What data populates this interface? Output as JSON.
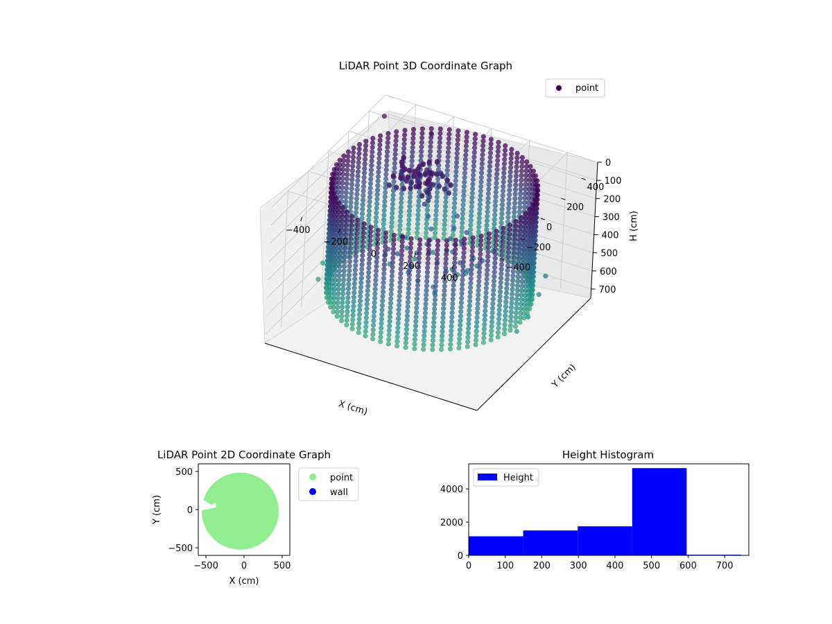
{
  "chart_data": [
    {
      "type": "scatter",
      "subtype": "3d",
      "title": "LiDAR Point 3D Coordinate Graph",
      "xlabel": "X (cm)",
      "ylabel": "Y (cm)",
      "zlabel": "H (cm)",
      "x_ticks": [
        -400,
        -200,
        0,
        200,
        400
      ],
      "y_ticks": [
        -400,
        -200,
        0,
        200,
        400
      ],
      "z_ticks": [
        0,
        100,
        200,
        300,
        400,
        500,
        600,
        700
      ],
      "x_tick_labels": [
        "−400",
        "−200",
        "0",
        "200",
        "400"
      ],
      "y_tick_labels": [
        "−400",
        "−200",
        "0",
        "200",
        "400"
      ],
      "z_tick_labels": [
        "0",
        "100",
        "200",
        "300",
        "400",
        "500",
        "600",
        "700"
      ],
      "z_inverted": true,
      "xlim": [
        -560,
        560
      ],
      "ylim": [
        -560,
        560
      ],
      "zlim": [
        0,
        750
      ],
      "colormap": "viridis",
      "legend": [
        "point"
      ],
      "legend_position": "top-right",
      "wall_shape": "ring",
      "wall_radius": 480,
      "wall_height_range": [
        0,
        600
      ],
      "inner_structure_center": [
        -150,
        150
      ],
      "outlier_points": [
        {
          "x": -520,
          "y": 480,
          "h": 60
        },
        {
          "x": -300,
          "y": 540,
          "h": 120
        },
        {
          "x": -560,
          "y": 200,
          "h": 420
        },
        {
          "x": -540,
          "y": 120,
          "h": 510
        },
        {
          "x": -520,
          "y": -80,
          "h": 560
        },
        {
          "x": -480,
          "y": -200,
          "h": 570
        },
        {
          "x": 520,
          "y": 160,
          "h": 420
        },
        {
          "x": 540,
          "y": 60,
          "h": 460
        },
        {
          "x": 560,
          "y": -80,
          "h": 500
        },
        {
          "x": 545,
          "y": -160,
          "h": 540
        }
      ]
    },
    {
      "type": "scatter",
      "title": "LiDAR Point 2D Coordinate Graph",
      "xlabel": "X (cm)",
      "ylabel": "Y (cm)",
      "x_ticks": [
        -500,
        0,
        500
      ],
      "y_ticks": [
        -500,
        0,
        500
      ],
      "x_tick_labels": [
        "−500",
        "0",
        "500"
      ],
      "y_tick_labels": [
        "−500",
        "0",
        "500"
      ],
      "xlim": [
        -600,
        600
      ],
      "ylim": [
        -600,
        600
      ],
      "legend": [
        {
          "label": "point",
          "color": "#90ee90"
        },
        {
          "label": "wall",
          "color": "#0000ff"
        }
      ],
      "legend_position": "outside-right",
      "point_region": {
        "center": [
          -50,
          -20
        ],
        "radius": 505
      }
    },
    {
      "type": "bar",
      "subtype": "histogram",
      "title": "Height Histogram",
      "legend": [
        "Height"
      ],
      "legend_position": "top-left",
      "color": "#0000ff",
      "bins": [
        {
          "start": 0,
          "end": 149,
          "count": 1150
        },
        {
          "start": 149,
          "end": 298,
          "count": 1500
        },
        {
          "start": 298,
          "end": 447,
          "count": 1750
        },
        {
          "start": 447,
          "end": 596,
          "count": 5250
        },
        {
          "start": 596,
          "end": 745,
          "count": 40
        }
      ],
      "x_ticks": [
        0,
        100,
        200,
        300,
        400,
        500,
        600,
        700
      ],
      "y_ticks": [
        0,
        2000,
        4000
      ],
      "x_tick_labels": [
        "0",
        "100",
        "200",
        "300",
        "400",
        "500",
        "600",
        "700"
      ],
      "y_tick_labels": [
        "0",
        "2000",
        "4000"
      ],
      "xlim": [
        0,
        766
      ],
      "ylim": [
        0,
        5510
      ]
    }
  ]
}
